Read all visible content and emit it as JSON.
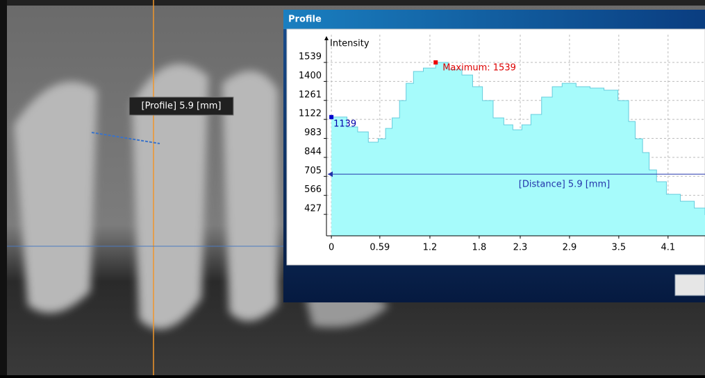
{
  "overlay_label": "[Profile] 5.9 [mm]",
  "window_title": "Profile",
  "chart_data": {
    "type": "area",
    "y_axis_label": "Intensity",
    "x": [
      0,
      0.17,
      0.19,
      0.32,
      0.45,
      0.57,
      0.66,
      0.74,
      0.83,
      0.91,
      1.0,
      1.12,
      1.27,
      1.42,
      1.59,
      1.72,
      1.84,
      1.97,
      2.1,
      2.21,
      2.32,
      2.43,
      2.56,
      2.69,
      2.81,
      2.98,
      3.15,
      3.32,
      3.49,
      3.62,
      3.7,
      3.79,
      3.87,
      3.96,
      4.08,
      4.25,
      4.42,
      4.55
    ],
    "values": [
      1139,
      1139,
      1067,
      1031,
      955,
      980,
      1056,
      1133,
      1260,
      1386,
      1473,
      1498,
      1539,
      1488,
      1447,
      1361,
      1260,
      1133,
      1082,
      1046,
      1082,
      1158,
      1285,
      1361,
      1386,
      1361,
      1351,
      1336,
      1260,
      1107,
      980,
      879,
      752,
      666,
      574,
      523,
      473,
      422
    ],
    "color": "#a6fbfb",
    "xlim": [
      -0.06,
      4.55
    ],
    "ylim": [
      270,
      1742
    ],
    "xticks": [
      0,
      0.59,
      1.2,
      1.8,
      2.3,
      2.9,
      3.5,
      4.1
    ],
    "yticks": [
      427,
      566,
      705,
      844,
      983,
      1122,
      1261,
      1400,
      1539
    ],
    "grid": true,
    "max_annotation": {
      "text": "Maximum: 1539",
      "x": 1.27,
      "y": 1539
    },
    "start_annotation": {
      "text": "1139",
      "x": 0,
      "y": 1139
    },
    "distance_line": {
      "label": "[Distance] 5.9 [mm]",
      "y": 721
    }
  }
}
